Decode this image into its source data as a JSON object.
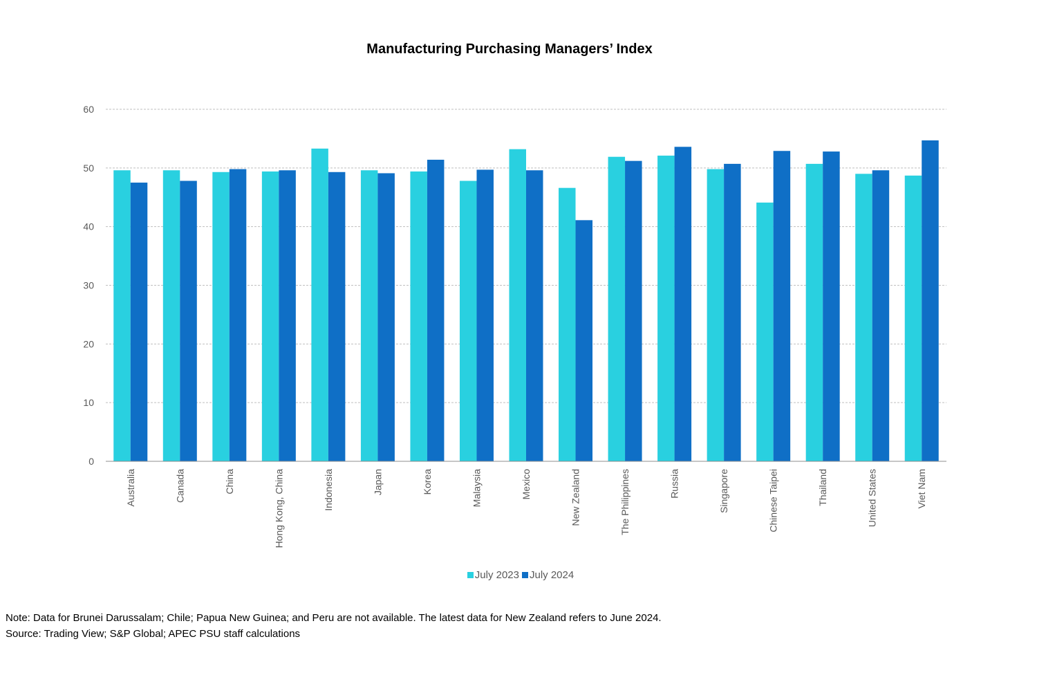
{
  "chart_data": {
    "type": "bar",
    "title": "Manufacturing Purchasing Managers’ Index",
    "xlabel": "",
    "ylabel": "",
    "ylim": [
      0,
      60
    ],
    "yticks": [
      0,
      10,
      20,
      30,
      40,
      50,
      60
    ],
    "grid": true,
    "legend_position": "bottom",
    "categories": [
      "Australia",
      "Canada",
      "China",
      "Hong Kong, China",
      "Indonesia",
      "Japan",
      "Korea",
      "Malaysia",
      "Mexico",
      "New Zealand",
      "The Philippines",
      "Russia",
      "Singapore",
      "Chinese Taipei",
      "Thailand",
      "United States",
      "Viet Nam"
    ],
    "series": [
      {
        "name": "July 2023",
        "color": "#29D0E0",
        "values": [
          49.6,
          49.6,
          49.3,
          49.4,
          53.3,
          49.6,
          49.4,
          47.8,
          53.2,
          46.6,
          51.9,
          52.1,
          49.8,
          44.1,
          50.7,
          49.0,
          48.7
        ]
      },
      {
        "name": "July 2024",
        "color": "#0F6FC6",
        "values": [
          47.5,
          47.8,
          49.8,
          49.6,
          49.3,
          49.1,
          51.4,
          49.7,
          49.6,
          41.1,
          51.2,
          53.6,
          50.7,
          52.9,
          52.8,
          49.6,
          54.7
        ]
      }
    ]
  },
  "footnotes": {
    "note": "Note: Data for Brunei Darussalam; Chile; Papua New Guinea; and Peru are not available. The latest data for New Zealand refers to June 2024.",
    "source": "Source: Trading View; S&P Global; APEC PSU staff calculations"
  }
}
